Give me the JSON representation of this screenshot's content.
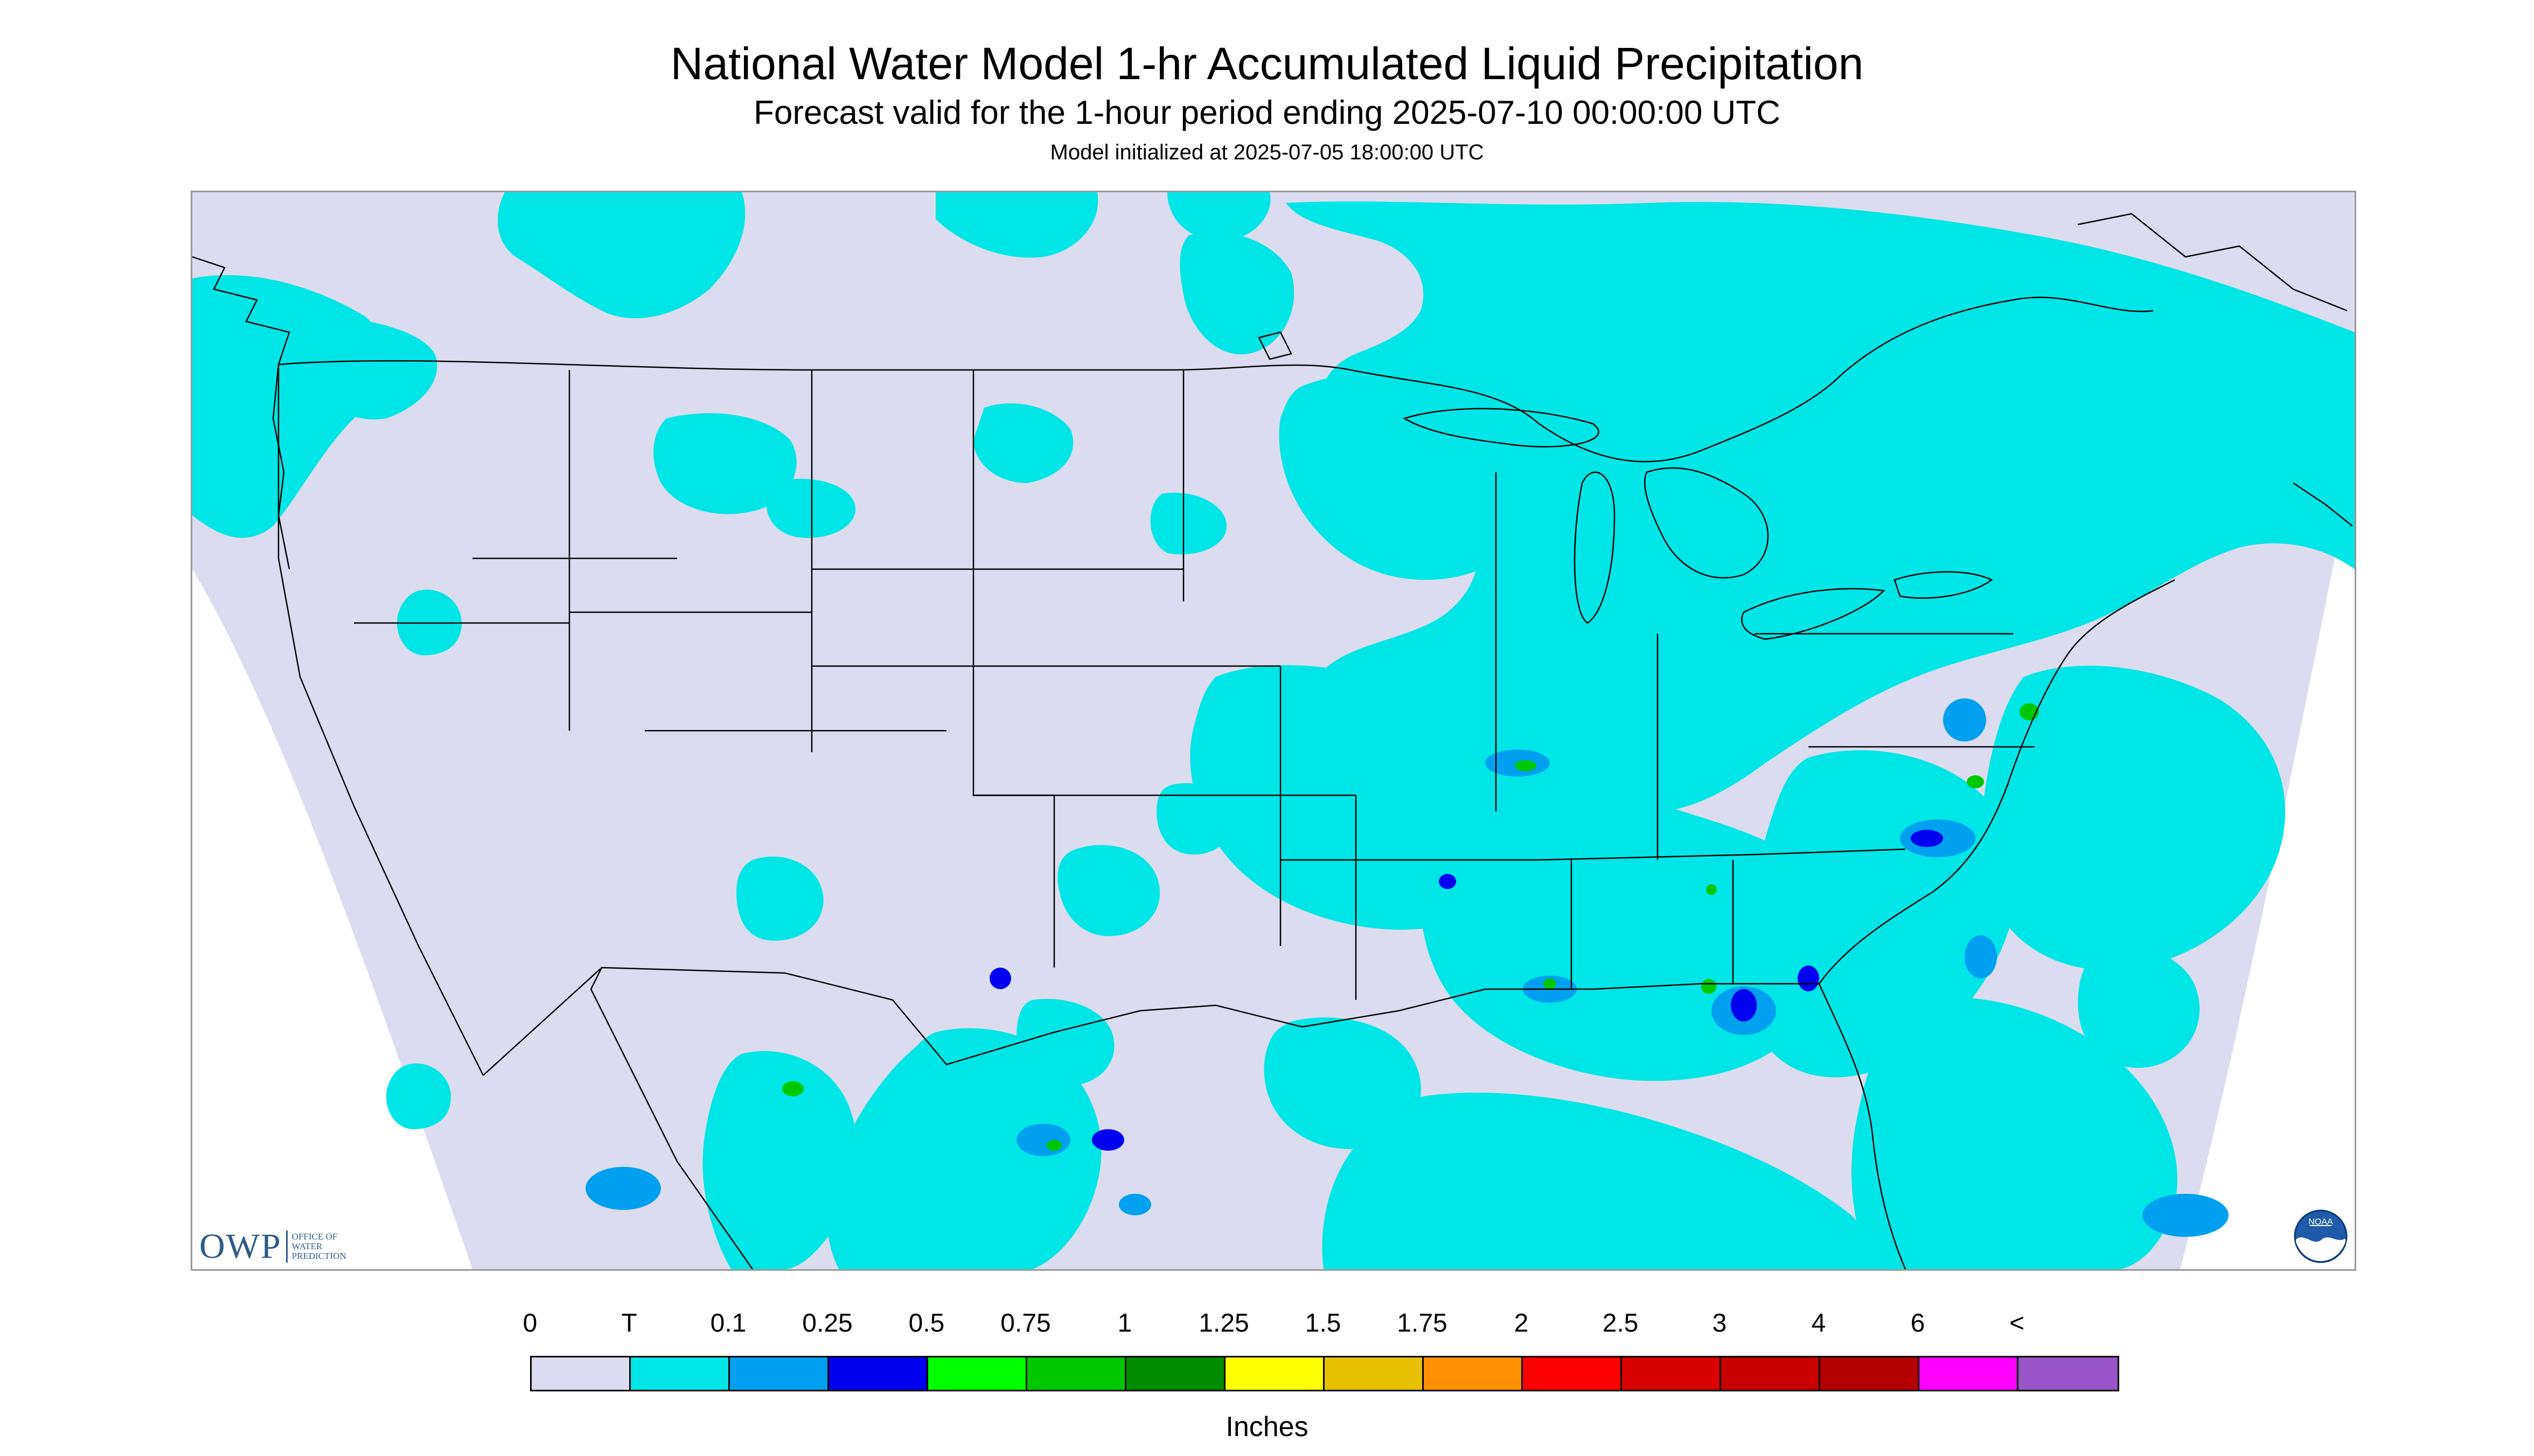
{
  "title": "National Water Model 1-hr Accumulated Liquid Precipitation",
  "subtitle": "Forecast valid for the 1-hour period ending 2025-07-10 00:00:00 UTC",
  "init": "Model initialized at 2025-07-05 18:00:00 UTC",
  "logos": {
    "owp": "OWP",
    "owp_sub": [
      "OFFICE OF",
      "WATER",
      "PREDICTION"
    ],
    "noaa": "NOAA"
  },
  "legend": {
    "units": "Inches",
    "labels": [
      "0",
      "T",
      "0.1",
      "0.25",
      "0.5",
      "0.75",
      "1",
      "1.25",
      "1.5",
      "1.75",
      "2",
      "2.5",
      "3",
      "4",
      "6",
      "<"
    ],
    "colors": [
      "#dcdcf0",
      "#00e6e6",
      "#00a0f0",
      "#0000f0",
      "#00ff00",
      "#00c800",
      "#008c00",
      "#ffff00",
      "#e6c000",
      "#ff9000",
      "#ff0000",
      "#d80000",
      "#c80000",
      "#b40000",
      "#ff00ff",
      "#9955c8"
    ]
  },
  "map": {
    "background_color": "#dcdcf0",
    "outside_color": "#ffffff",
    "trace_color": "#00e6e6",
    "light_blue_color": "#00a0f0",
    "blue_color": "#0000f0",
    "green_color": "#00c800",
    "yellow_color": "#ffff00",
    "line_color": "#000000"
  }
}
